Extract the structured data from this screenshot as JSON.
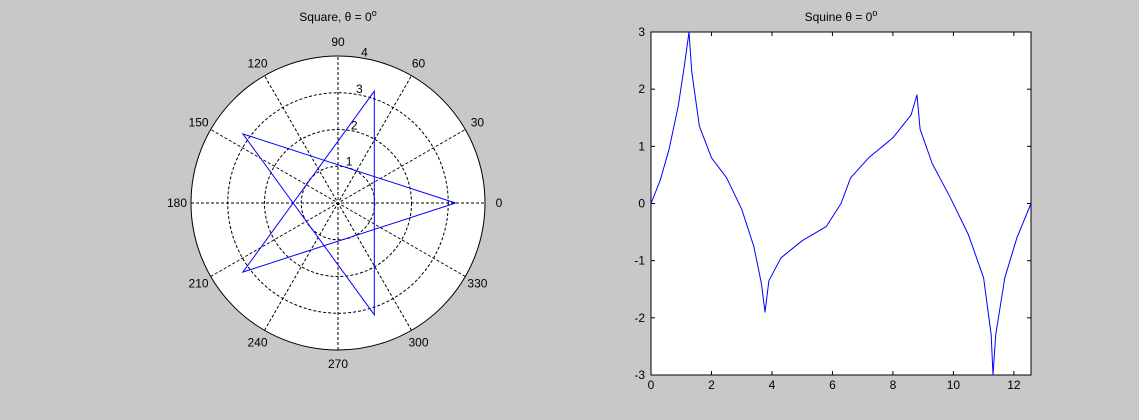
{
  "window_title": "",
  "chart_data": [
    {
      "type": "polar",
      "title": "Square, θ = 0°",
      "title_main": "Square, θ = 0",
      "title_sup": "o",
      "rlim": [
        0,
        4
      ],
      "r_ticks": [
        "1",
        "2",
        "3",
        "4"
      ],
      "angle_ticks": [
        "0",
        "30",
        "60",
        "90",
        "120",
        "150",
        "180",
        "210",
        "240",
        "270",
        "300",
        "330"
      ],
      "angle_tick_degrees": [
        0,
        30,
        60,
        90,
        120,
        150,
        180,
        210,
        240,
        270,
        300,
        330
      ],
      "grid": true,
      "series": [
        {
          "color": "#0000ff",
          "points_theta_deg": [
            0,
            144,
            288,
            72,
            216,
            0
          ],
          "points_r": [
            3.2,
            3.2,
            3.2,
            3.2,
            3.2,
            3.2
          ]
        }
      ]
    },
    {
      "type": "line",
      "title": "Squine θ = 0°",
      "title_main": "Squine θ = 0",
      "title_sup": "o",
      "xlim": [
        0,
        12.566
      ],
      "ylim": [
        -3,
        3
      ],
      "x_ticks": [
        "0",
        "2",
        "4",
        "6",
        "8",
        "10",
        "12"
      ],
      "y_ticks": [
        "-3",
        "-2",
        "-1",
        "0",
        "1",
        "2",
        "3"
      ],
      "x_tick_values": [
        0,
        2,
        4,
        6,
        8,
        10,
        12
      ],
      "y_tick_values": [
        -3,
        -2,
        -1,
        0,
        1,
        2,
        3
      ],
      "grid": false,
      "series": [
        {
          "color": "#0000ff",
          "x": [
            0,
            0.3,
            0.6,
            0.9,
            1.1,
            1.2566,
            1.35,
            1.6,
            2.0,
            2.5,
            3.0,
            3.4,
            3.65,
            3.7699,
            3.9,
            4.3,
            5.0,
            5.8,
            6.2832,
            6.6,
            7.2,
            8.0,
            8.6,
            8.7965,
            8.9,
            9.3,
            9.9,
            10.5,
            11.0,
            11.25,
            11.3097,
            11.4,
            11.7,
            12.1,
            12.566
          ],
          "y": [
            0,
            0.4,
            0.95,
            1.7,
            2.4,
            3.0,
            2.3,
            1.35,
            0.8,
            0.45,
            -0.1,
            -0.75,
            -1.4,
            -1.9,
            -1.35,
            -0.95,
            -0.65,
            -0.4,
            0,
            0.45,
            0.8,
            1.15,
            1.55,
            1.9,
            1.3,
            0.7,
            0.1,
            -0.55,
            -1.3,
            -2.3,
            -3.0,
            -2.3,
            -1.3,
            -0.6,
            0
          ]
        }
      ]
    }
  ]
}
